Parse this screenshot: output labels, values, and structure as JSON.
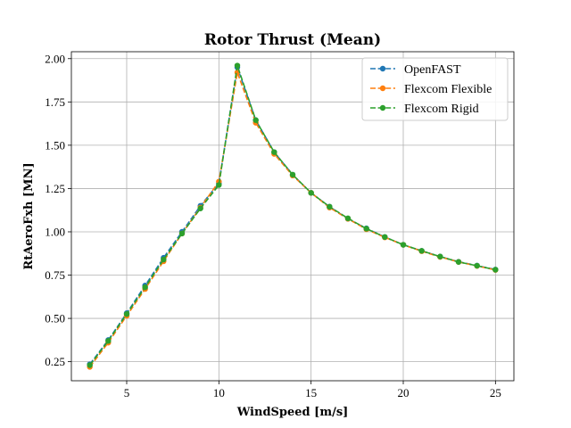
{
  "chart_data": {
    "type": "line",
    "title": "Rotor Thrust (Mean)",
    "xlabel": "WindSpeed [m/s]",
    "ylabel": "RtAeroFxh [MN]",
    "xlim": [
      2.0,
      26.0
    ],
    "ylim": [
      0.14,
      2.04
    ],
    "xticks": [
      5,
      10,
      15,
      20,
      25
    ],
    "yticks": [
      0.25,
      0.5,
      0.75,
      1.0,
      1.25,
      1.5,
      1.75,
      2.0
    ],
    "xtick_labels": [
      "5",
      "10",
      "15",
      "20",
      "25"
    ],
    "ytick_labels": [
      "0.25",
      "0.50",
      "0.75",
      "1.00",
      "1.25",
      "1.50",
      "1.75",
      "2.00"
    ],
    "grid": true,
    "legend_position": "top-right",
    "x": [
      3,
      4,
      5,
      6,
      7,
      8,
      9,
      10,
      11,
      12,
      13,
      14,
      15,
      16,
      17,
      18,
      19,
      20,
      21,
      22,
      23,
      24,
      25
    ],
    "series": [
      {
        "name": "OpenFAST",
        "color": "#1f77b4",
        "values": [
          0.235,
          0.375,
          0.53,
          0.69,
          0.85,
          1.0,
          1.15,
          1.28,
          1.95,
          1.645,
          1.46,
          1.33,
          1.225,
          1.145,
          1.075,
          1.02,
          0.97,
          0.925,
          0.89,
          0.857,
          0.827,
          0.805,
          0.782
        ]
      },
      {
        "name": "Flexcom Flexible",
        "color": "#ff7f0e",
        "values": [
          0.22,
          0.36,
          0.515,
          0.67,
          0.83,
          0.99,
          1.14,
          1.29,
          1.92,
          1.63,
          1.45,
          1.325,
          1.225,
          1.14,
          1.075,
          1.015,
          0.968,
          0.925,
          0.888,
          0.855,
          0.826,
          0.803,
          0.78
        ]
      },
      {
        "name": "Flexcom Rigid",
        "color": "#2ca02c",
        "values": [
          0.23,
          0.37,
          0.525,
          0.68,
          0.84,
          0.99,
          1.135,
          1.27,
          1.96,
          1.645,
          1.46,
          1.33,
          1.225,
          1.145,
          1.078,
          1.018,
          0.97,
          0.925,
          0.89,
          0.857,
          0.826,
          0.804,
          0.781
        ]
      }
    ]
  }
}
